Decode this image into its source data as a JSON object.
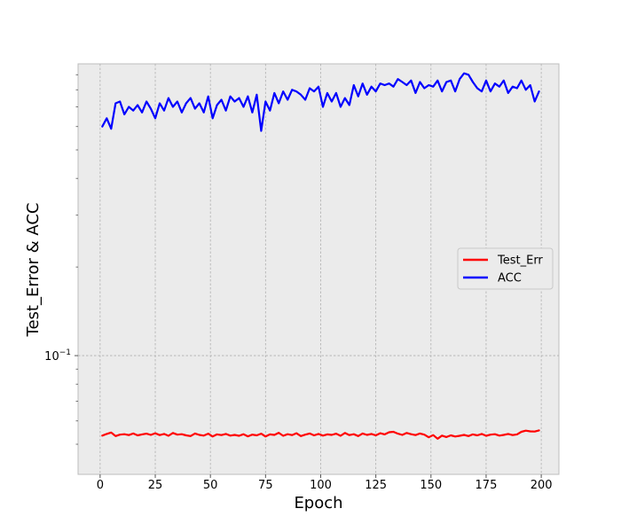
{
  "chart_data": {
    "type": "line",
    "title": "",
    "xlabel": "Epoch",
    "ylabel": "Test_Error & ACC",
    "xlim": [
      -10,
      208
    ],
    "ylim": [
      0.0395,
      0.98
    ],
    "yscale": "log",
    "grid": true,
    "legend_position": "center-right",
    "x_ticks": [
      0,
      25,
      50,
      75,
      100,
      125,
      150,
      175,
      200
    ],
    "y_major_ticks": [
      {
        "value": 0.1,
        "base": "10",
        "exp": "-1"
      }
    ],
    "y_minor_ticks": [
      0.05,
      0.06,
      0.07,
      0.08,
      0.09,
      0.2,
      0.3,
      0.4,
      0.5,
      0.6,
      0.7,
      0.8,
      0.9
    ],
    "series": [
      {
        "name": "Test_Err",
        "color": "#ff0000",
        "x": [
          1,
          3,
          5,
          7,
          9,
          11,
          13,
          15,
          17,
          19,
          21,
          23,
          25,
          27,
          29,
          31,
          33,
          35,
          37,
          39,
          41,
          43,
          45,
          47,
          49,
          51,
          53,
          55,
          57,
          59,
          61,
          63,
          65,
          67,
          69,
          71,
          73,
          75,
          77,
          79,
          81,
          83,
          85,
          87,
          89,
          91,
          93,
          95,
          97,
          99,
          101,
          103,
          105,
          107,
          109,
          111,
          113,
          115,
          117,
          119,
          121,
          123,
          125,
          127,
          129,
          131,
          133,
          135,
          137,
          139,
          141,
          143,
          145,
          147,
          149,
          151,
          153,
          155,
          157,
          159,
          161,
          163,
          165,
          167,
          169,
          171,
          173,
          175,
          177,
          179,
          181,
          183,
          185,
          187,
          189,
          191,
          193,
          195,
          197,
          199
        ],
        "values": [
          0.0535,
          0.0542,
          0.0548,
          0.0533,
          0.0539,
          0.0541,
          0.0537,
          0.0544,
          0.0536,
          0.054,
          0.0543,
          0.0538,
          0.0545,
          0.0537,
          0.0542,
          0.0534,
          0.0546,
          0.0539,
          0.0541,
          0.0536,
          0.0533,
          0.0544,
          0.0538,
          0.0535,
          0.0543,
          0.0531,
          0.054,
          0.0537,
          0.0542,
          0.0535,
          0.0538,
          0.0534,
          0.0541,
          0.0532,
          0.0539,
          0.0536,
          0.0543,
          0.0531,
          0.054,
          0.0538,
          0.0547,
          0.0534,
          0.0541,
          0.0537,
          0.0545,
          0.0533,
          0.0539,
          0.0544,
          0.0536,
          0.0542,
          0.0535,
          0.054,
          0.0538,
          0.0543,
          0.0534,
          0.0546,
          0.0537,
          0.0541,
          0.0533,
          0.0544,
          0.0538,
          0.0542,
          0.0536,
          0.0545,
          0.054,
          0.0549,
          0.0551,
          0.0543,
          0.0538,
          0.0546,
          0.0541,
          0.0537,
          0.0544,
          0.0539,
          0.0528,
          0.0537,
          0.0522,
          0.0535,
          0.0529,
          0.0536,
          0.0531,
          0.0534,
          0.0538,
          0.0533,
          0.054,
          0.0536,
          0.0542,
          0.0534,
          0.0539,
          0.0541,
          0.0535,
          0.0538,
          0.0542,
          0.0537,
          0.054,
          0.0551,
          0.0556,
          0.0553,
          0.0552,
          0.0557
        ]
      },
      {
        "name": "ACC",
        "color": "#0000ff",
        "x": [
          1,
          3,
          5,
          7,
          9,
          11,
          13,
          15,
          17,
          19,
          21,
          23,
          25,
          27,
          29,
          31,
          33,
          35,
          37,
          39,
          41,
          43,
          45,
          47,
          49,
          51,
          53,
          55,
          57,
          59,
          61,
          63,
          65,
          67,
          69,
          71,
          73,
          75,
          77,
          79,
          81,
          83,
          85,
          87,
          89,
          91,
          93,
          95,
          97,
          99,
          101,
          103,
          105,
          107,
          109,
          111,
          113,
          115,
          117,
          119,
          121,
          123,
          125,
          127,
          129,
          131,
          133,
          135,
          137,
          139,
          141,
          143,
          145,
          147,
          149,
          151,
          153,
          155,
          157,
          159,
          161,
          163,
          165,
          167,
          169,
          171,
          173,
          175,
          177,
          179,
          181,
          183,
          185,
          187,
          189,
          191,
          193,
          195,
          197,
          199
        ],
        "values": [
          0.6,
          0.64,
          0.59,
          0.72,
          0.73,
          0.66,
          0.7,
          0.68,
          0.71,
          0.67,
          0.73,
          0.69,
          0.64,
          0.72,
          0.68,
          0.75,
          0.7,
          0.73,
          0.67,
          0.72,
          0.75,
          0.69,
          0.72,
          0.67,
          0.76,
          0.64,
          0.71,
          0.74,
          0.68,
          0.76,
          0.73,
          0.75,
          0.7,
          0.76,
          0.67,
          0.77,
          0.58,
          0.73,
          0.68,
          0.78,
          0.72,
          0.79,
          0.74,
          0.8,
          0.79,
          0.77,
          0.74,
          0.81,
          0.79,
          0.82,
          0.7,
          0.78,
          0.73,
          0.78,
          0.7,
          0.75,
          0.71,
          0.83,
          0.76,
          0.84,
          0.77,
          0.82,
          0.79,
          0.84,
          0.83,
          0.84,
          0.82,
          0.87,
          0.85,
          0.83,
          0.86,
          0.78,
          0.85,
          0.81,
          0.83,
          0.82,
          0.86,
          0.79,
          0.85,
          0.86,
          0.79,
          0.87,
          0.91,
          0.9,
          0.85,
          0.81,
          0.79,
          0.86,
          0.79,
          0.84,
          0.82,
          0.86,
          0.78,
          0.82,
          0.81,
          0.86,
          0.8,
          0.83,
          0.73,
          0.79
        ]
      }
    ]
  }
}
